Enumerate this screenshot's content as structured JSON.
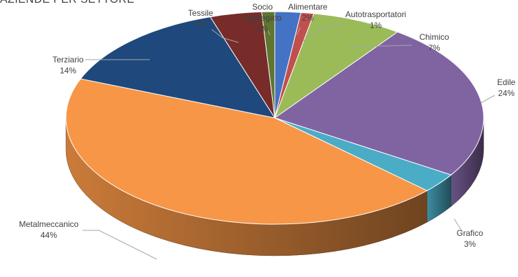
{
  "chart_data": {
    "type": "pie",
    "title": "AZIENDE PER SETTORE",
    "slices": [
      {
        "name": "Alimentare",
        "value": 2,
        "label_pct": "2%",
        "color": "#4472c4"
      },
      {
        "name": "Autotrasportatori",
        "value": 1,
        "label_pct": "1%",
        "color": "#c0504d"
      },
      {
        "name": "Chimico",
        "value": 7,
        "label_pct": "7%",
        "color": "#9bbb59"
      },
      {
        "name": "Edile",
        "value": 24,
        "label_pct": "24%",
        "color": "#8064a2"
      },
      {
        "name": "Grafico",
        "value": 3,
        "label_pct": "3%",
        "color": "#4bacc6"
      },
      {
        "name": "Metalmeccanico",
        "value": 44,
        "label_pct": "44%",
        "color": "#f79646"
      },
      {
        "name": "Terziario",
        "value": 14,
        "label_pct": "14%",
        "color": "#1f497d"
      },
      {
        "name": "Tessile",
        "value": 4,
        "label_pct": "4%",
        "color": "#772c2a"
      },
      {
        "name": "Socio\nAggregato",
        "value": 1,
        "label_pct": "1%",
        "color": "#5f7530"
      }
    ],
    "legend": "none",
    "style": "3d"
  }
}
